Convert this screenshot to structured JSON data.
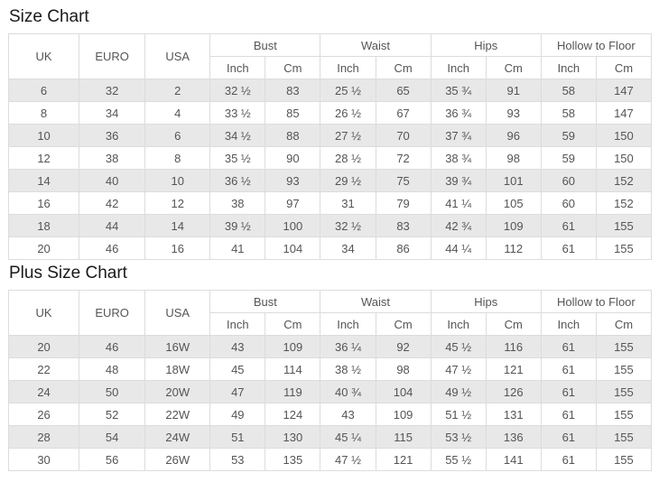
{
  "colors": {
    "stripe_row": "#e8e8e8",
    "border": "#dcdcdc",
    "cell_text": "#555555",
    "title_text": "#1a1a1a",
    "background": "#ffffff"
  },
  "tables": [
    {
      "title": "Size Chart",
      "simple_headers": [
        "UK",
        "EURO",
        "USA"
      ],
      "group_headers": [
        "Bust",
        "Waist",
        "Hips",
        "Hollow to Floor"
      ],
      "unit_headers": [
        "Inch",
        "Cm"
      ],
      "rows": [
        [
          "6",
          "32",
          "2",
          "32 ½",
          "83",
          "25 ½",
          "65",
          "35 ¾",
          "91",
          "58",
          "147"
        ],
        [
          "8",
          "34",
          "4",
          "33 ½",
          "85",
          "26 ½",
          "67",
          "36 ¾",
          "93",
          "58",
          "147"
        ],
        [
          "10",
          "36",
          "6",
          "34 ½",
          "88",
          "27 ½",
          "70",
          "37 ¾",
          "96",
          "59",
          "150"
        ],
        [
          "12",
          "38",
          "8",
          "35 ½",
          "90",
          "28 ½",
          "72",
          "38 ¾",
          "98",
          "59",
          "150"
        ],
        [
          "14",
          "40",
          "10",
          "36 ½",
          "93",
          "29 ½",
          "75",
          "39 ¾",
          "101",
          "60",
          "152"
        ],
        [
          "16",
          "42",
          "12",
          "38",
          "97",
          "31",
          "79",
          "41 ¼",
          "105",
          "60",
          "152"
        ],
        [
          "18",
          "44",
          "14",
          "39 ½",
          "100",
          "32 ½",
          "83",
          "42 ¾",
          "109",
          "61",
          "155"
        ],
        [
          "20",
          "46",
          "16",
          "41",
          "104",
          "34",
          "86",
          "44 ¼",
          "112",
          "61",
          "155"
        ]
      ]
    },
    {
      "title": "Plus Size Chart",
      "simple_headers": [
        "UK",
        "EURO",
        "USA"
      ],
      "group_headers": [
        "Bust",
        "Waist",
        "Hips",
        "Hollow to Floor"
      ],
      "unit_headers": [
        "Inch",
        "Cm"
      ],
      "rows": [
        [
          "20",
          "46",
          "16W",
          "43",
          "109",
          "36 ¼",
          "92",
          "45 ½",
          "116",
          "61",
          "155"
        ],
        [
          "22",
          "48",
          "18W",
          "45",
          "114",
          "38 ½",
          "98",
          "47 ½",
          "121",
          "61",
          "155"
        ],
        [
          "24",
          "50",
          "20W",
          "47",
          "119",
          "40 ¾",
          "104",
          "49 ½",
          "126",
          "61",
          "155"
        ],
        [
          "26",
          "52",
          "22W",
          "49",
          "124",
          "43",
          "109",
          "51 ½",
          "131",
          "61",
          "155"
        ],
        [
          "28",
          "54",
          "24W",
          "51",
          "130",
          "45 ¼",
          "115",
          "53 ½",
          "136",
          "61",
          "155"
        ],
        [
          "30",
          "56",
          "26W",
          "53",
          "135",
          "47 ½",
          "121",
          "55 ½",
          "141",
          "61",
          "155"
        ]
      ]
    }
  ]
}
